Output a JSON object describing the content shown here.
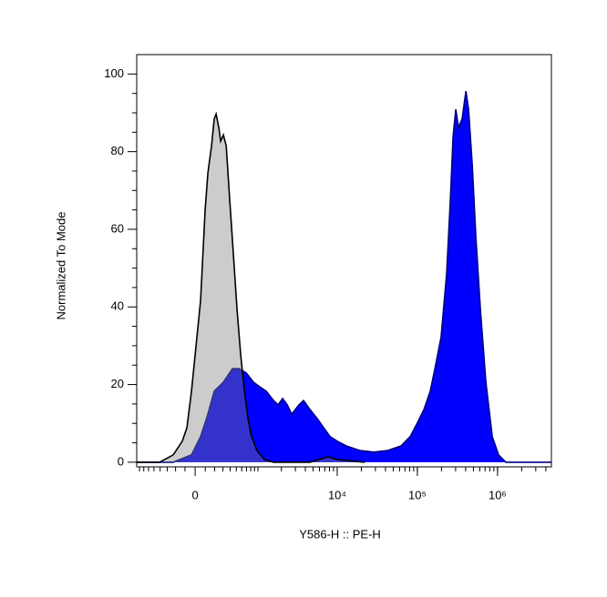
{
  "chart_data": {
    "type": "area",
    "x_label": "Y586-H :: PE-H",
    "y_label": "Normalized To Mode",
    "xscale": "biexponential",
    "xlim": [
      -873,
      4700000
    ],
    "ylim": [
      -1.2,
      105
    ],
    "xticks": [
      0,
      {
        "value": 10000,
        "label": "10⁴"
      },
      {
        "value": 100000,
        "label": "10⁵"
      },
      {
        "value": 1000000,
        "label": "10⁶"
      }
    ],
    "yticks": [
      0,
      20,
      40,
      60,
      80,
      100
    ],
    "series": [
      {
        "color": "#0000ff",
        "edgecolor": "#000080",
        "alpha": 1,
        "x": [
          -873,
          -226,
          -35,
          53,
          127,
          195,
          306,
          437,
          546,
          693,
          873,
          1058,
          1281,
          1589,
          1815,
          2072,
          2366,
          2700,
          3333,
          3800,
          4560,
          5650,
          6770,
          8140,
          10000,
          13000,
          19300,
          28600,
          42300,
          62600,
          81400,
          100000,
          121000,
          145000,
          170000,
          198000,
          232000,
          258000,
          279000,
          302000,
          326000,
          362000,
          403000,
          435000,
          483000,
          536000,
          611000,
          715000,
          859000,
          1030000,
          1270000,
          4700000
        ],
        "values": [
          0,
          0,
          1.9,
          6.6,
          12.4,
          18.3,
          20.6,
          24.1,
          24.1,
          23.0,
          20.6,
          19.4,
          18.3,
          15.9,
          14.8,
          16.4,
          14.8,
          12.4,
          14.8,
          15.9,
          13.6,
          11.2,
          8.9,
          6.6,
          5.4,
          4.2,
          3.0,
          2.6,
          3.0,
          4.2,
          6.6,
          10.1,
          13.6,
          18.3,
          25.3,
          32.3,
          48.7,
          67.4,
          83.8,
          90.9,
          86.2,
          88.5,
          95.6,
          90.9,
          76.8,
          58.1,
          39.3,
          20.6,
          6.6,
          1.9,
          0,
          0
        ]
      },
      {
        "color": "#808080",
        "edgecolor": "#000000",
        "alpha": 0.4,
        "x": [
          -873,
          -409,
          -226,
          -127,
          -80,
          -35,
          9,
          53,
          99,
          127,
          165,
          195,
          216,
          248,
          271,
          306,
          343,
          395,
          452,
          513,
          581,
          655,
          734,
          822,
          972,
          1213,
          1589,
          4560,
          5950,
          7720,
          10000,
          16900,
          22000
        ],
        "values": [
          0,
          0,
          1.9,
          5.4,
          8.9,
          18.3,
          30,
          41.7,
          65.1,
          74.5,
          81.5,
          88.5,
          89.7,
          86.2,
          82.7,
          84.3,
          81.5,
          67.4,
          53.4,
          39.3,
          27.6,
          18.3,
          11.2,
          6.6,
          3.0,
          0.7,
          0,
          0,
          0.7,
          1.4,
          0.7,
          0.2,
          0
        ]
      }
    ]
  }
}
